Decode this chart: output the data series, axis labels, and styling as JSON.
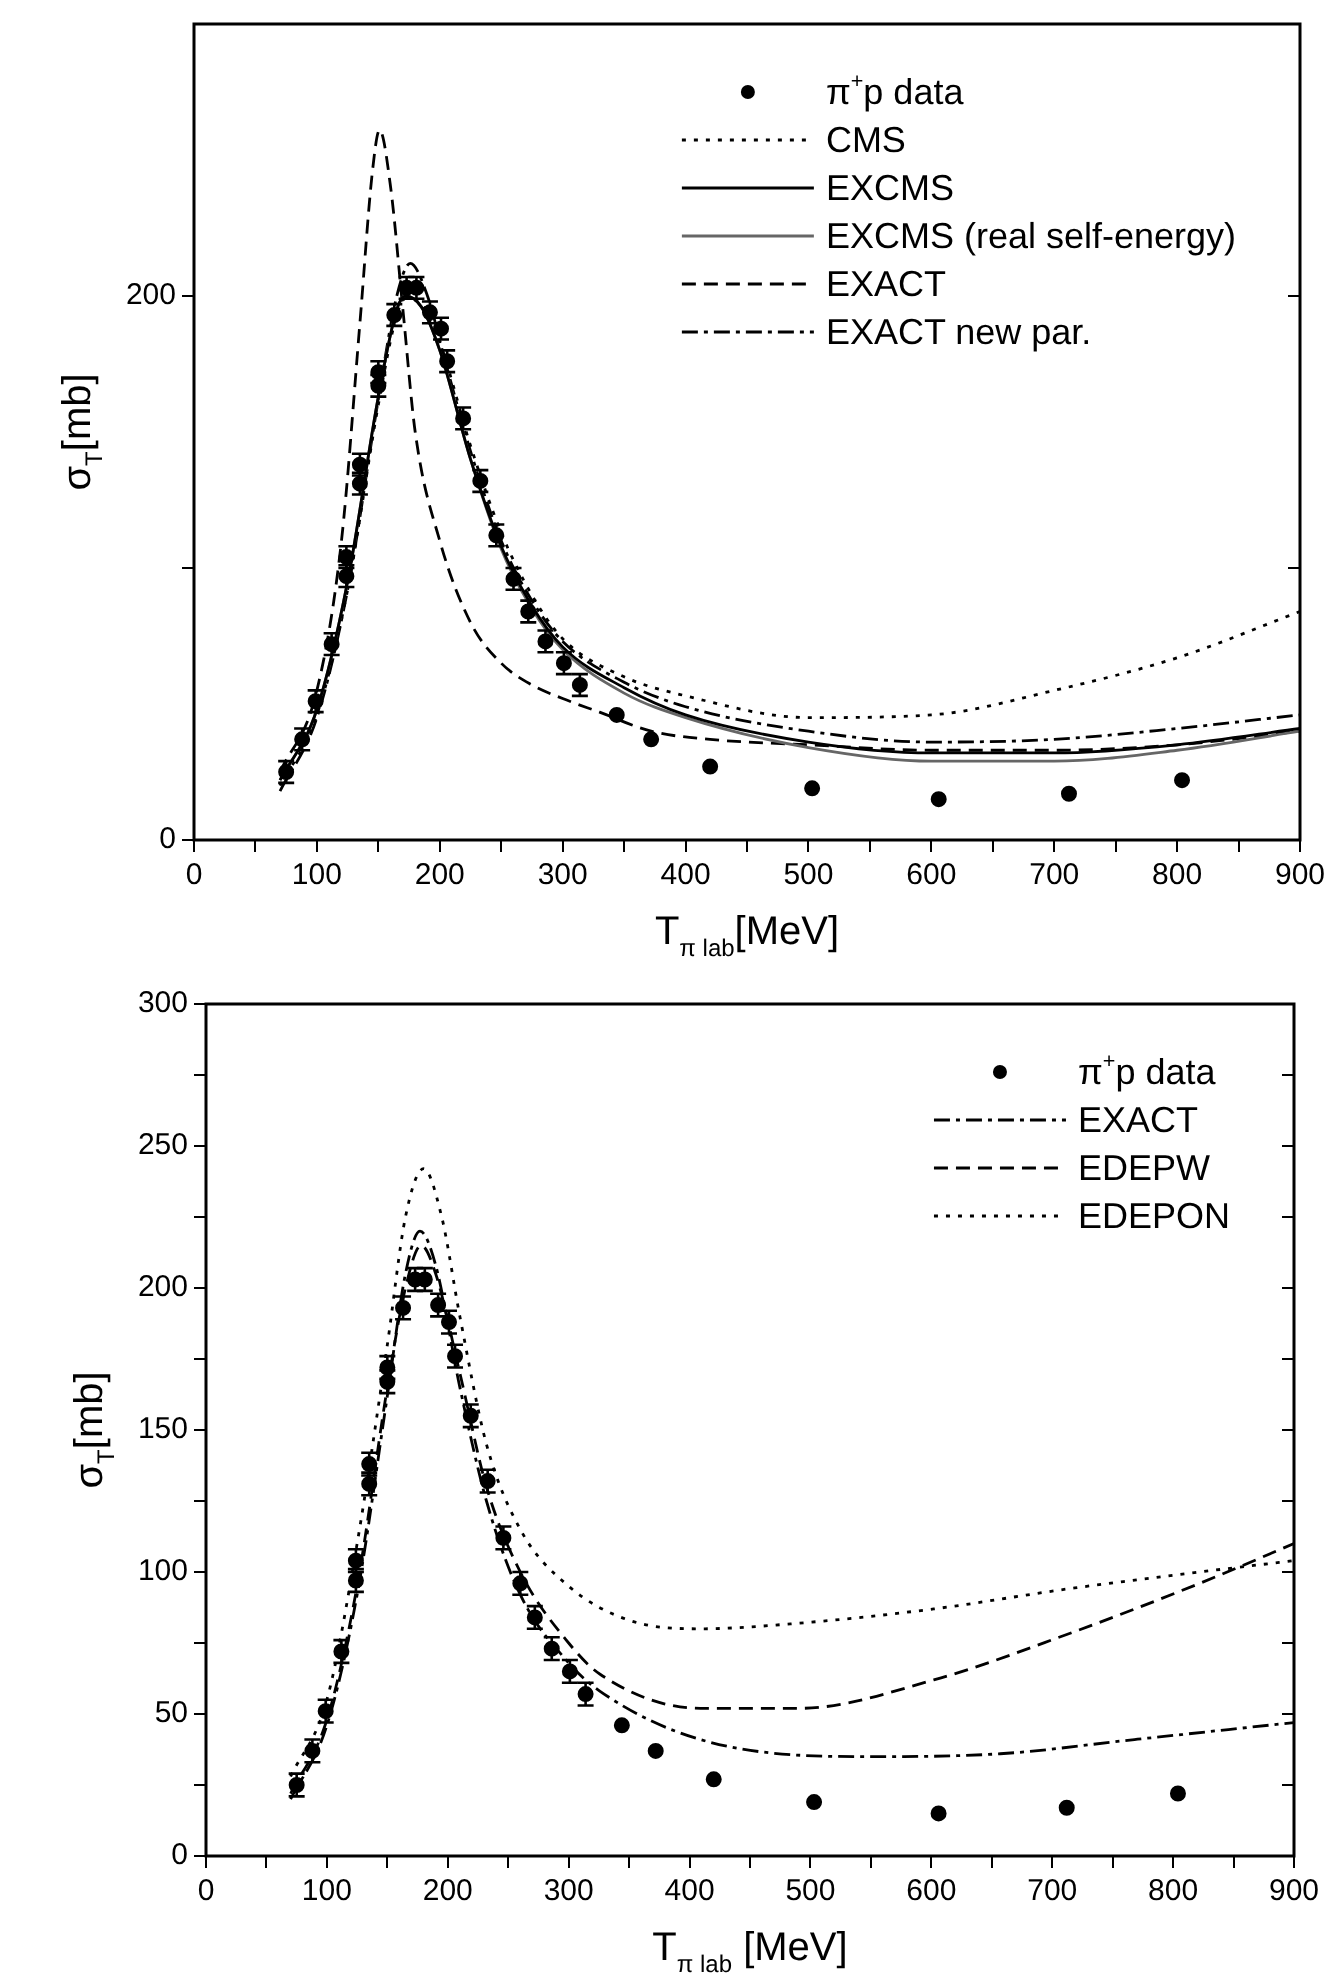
{
  "chart_data": [
    {
      "type": "line",
      "xlabel": "T$_{π lab}$[MeV]",
      "ylabel": "σ$_{T}$[mb]",
      "xlim": [
        0,
        900
      ],
      "xticks": [
        0,
        {
          "value": 50,
          "label": null
        },
        100,
        {
          "value": 150,
          "label": null
        },
        200,
        {
          "value": 250,
          "label": null
        },
        300,
        {
          "value": 350,
          "label": null
        },
        400,
        {
          "value": 450,
          "label": null
        },
        500,
        {
          "value": 550,
          "label": null
        },
        600,
        {
          "value": 650,
          "label": null
        },
        700,
        {
          "value": 750,
          "label": null
        },
        800,
        {
          "value": 850,
          "label": null
        },
        900
      ],
      "ylim": [
        0,
        300
      ],
      "yticks": [
        0,
        {
          "value": 100,
          "label": null
        },
        200
      ],
      "grid": false,
      "legend": "top right",
      "series": [
        {
          "name": "π$^{+}$p data",
          "type": "scatter",
          "marker": "circle",
          "color": "#000000",
          "x": [
            75,
            88,
            99,
            112,
            124,
            124,
            135,
            135,
            150,
            150,
            163,
            173,
            181,
            192,
            201,
            206,
            219,
            233,
            246,
            260,
            272,
            286,
            301,
            314,
            344,
            372,
            420,
            503,
            606,
            712,
            804
          ],
          "values": [
            25,
            37,
            51,
            72,
            97,
            104,
            131,
            138,
            167,
            172,
            193,
            203,
            203,
            194,
            188,
            176,
            155,
            132,
            112,
            96,
            84,
            73,
            65,
            57,
            46,
            37,
            27,
            19,
            15,
            17,
            22
          ],
          "errors": [
            4,
            4,
            4,
            4,
            4,
            4,
            4,
            4,
            4,
            4,
            4,
            4,
            4,
            4,
            4,
            4,
            4,
            4,
            4,
            4,
            4,
            4,
            4,
            4,
            null,
            null,
            null,
            null,
            null,
            null,
            null
          ]
        },
        {
          "name": "CMS",
          "type": "line",
          "line_style": "dotted",
          "color": "#000000",
          "x": [
            70,
            100,
            125,
            150,
            165,
            172,
            185,
            200,
            225,
            250,
            275,
            300,
            350,
            400,
            500,
            600,
            700,
            800,
            900
          ],
          "values": [
            20,
            46,
            92,
            160,
            193,
            199,
            197,
            183,
            145,
            113,
            90,
            74,
            60,
            53,
            45,
            46,
            55,
            67,
            84
          ]
        },
        {
          "name": "EXCMS",
          "type": "line",
          "line_style": "solid",
          "color": "#000000",
          "x": [
            70,
            100,
            125,
            150,
            165,
            172,
            185,
            200,
            225,
            250,
            275,
            300,
            350,
            400,
            500,
            600,
            700,
            800,
            900
          ],
          "values": [
            22,
            48,
            95,
            163,
            195,
            200,
            196,
            180,
            140,
            108,
            86,
            71,
            56,
            46,
            36,
            32,
            32,
            35,
            41
          ]
        },
        {
          "name": "EXCMS (real self-energy)",
          "type": "line",
          "line_style": "solid",
          "color": "#666666",
          "x": [
            70,
            100,
            125,
            150,
            165,
            172,
            185,
            200,
            225,
            250,
            275,
            300,
            350,
            400,
            500,
            600,
            700,
            800,
            900
          ],
          "values": [
            22,
            48,
            95,
            163,
            195,
            200,
            196,
            180,
            140,
            107,
            85,
            70,
            54,
            45,
            34,
            29,
            29,
            33,
            40
          ]
        },
        {
          "name": "EXACT",
          "type": "line",
          "line_style": "dashed",
          "color": "#000000",
          "x": [
            70,
            100,
            120,
            135,
            145,
            151,
            160,
            170,
            180,
            200,
            225,
            250,
            275,
            300,
            330,
            372,
            420,
            500,
            600,
            700,
            800,
            900
          ],
          "values": [
            25,
            55,
            110,
            190,
            245,
            261,
            240,
            195,
            150,
            110,
            80,
            65,
            57,
            52,
            47,
            40,
            37,
            35,
            33,
            33,
            35,
            40
          ]
        },
        {
          "name": "EXACT new par.",
          "type": "line",
          "line_style": "dashdot",
          "color": "#000000",
          "x": [
            70,
            100,
            125,
            150,
            165,
            176,
            190,
            205,
            225,
            250,
            275,
            300,
            350,
            400,
            500,
            600,
            700,
            800,
            900
          ],
          "values": [
            18,
            45,
            92,
            162,
            200,
            212,
            200,
            175,
            143,
            110,
            88,
            73,
            58,
            49,
            40,
            36,
            37,
            41,
            46
          ]
        }
      ]
    },
    {
      "type": "line",
      "xlabel": "T$_{π lab}$ [MeV]",
      "ylabel": "σ$_{T}$[mb]",
      "xlim": [
        0,
        900
      ],
      "xticks": [
        0,
        {
          "value": 50,
          "label": null
        },
        100,
        {
          "value": 150,
          "label": null
        },
        200,
        {
          "value": 250,
          "label": null
        },
        300,
        {
          "value": 350,
          "label": null
        },
        400,
        {
          "value": 450,
          "label": null
        },
        500,
        {
          "value": 550,
          "label": null
        },
        600,
        {
          "value": 650,
          "label": null
        },
        700,
        {
          "value": 750,
          "label": null
        },
        800,
        {
          "value": 850,
          "label": null
        },
        900
      ],
      "ylim": [
        0,
        300
      ],
      "yticks": [
        0,
        {
          "value": 25,
          "label": null
        },
        50,
        {
          "value": 75,
          "label": null
        },
        100,
        {
          "value": 125,
          "label": null
        },
        150,
        {
          "value": 175,
          "label": null
        },
        200,
        {
          "value": 225,
          "label": null
        },
        250,
        {
          "value": 275,
          "label": null
        },
        300
      ],
      "grid": false,
      "legend": "top right",
      "series": [
        {
          "name": "π$^{+}$p data",
          "type": "scatter",
          "marker": "circle",
          "color": "#000000",
          "x": [
            75,
            88,
            99,
            112,
            124,
            124,
            135,
            135,
            150,
            150,
            163,
            173,
            181,
            192,
            201,
            206,
            219,
            233,
            246,
            260,
            272,
            286,
            301,
            314,
            344,
            372,
            420,
            503,
            606,
            712,
            804
          ],
          "values": [
            25,
            37,
            51,
            72,
            97,
            104,
            131,
            138,
            167,
            172,
            193,
            203,
            203,
            194,
            188,
            176,
            155,
            132,
            112,
            96,
            84,
            73,
            65,
            57,
            46,
            37,
            27,
            19,
            15,
            17,
            22
          ],
          "errors": [
            4,
            4,
            4,
            4,
            4,
            4,
            4,
            4,
            4,
            4,
            4,
            4,
            4,
            4,
            4,
            4,
            4,
            4,
            4,
            4,
            4,
            4,
            4,
            4,
            null,
            null,
            null,
            null,
            null,
            null,
            null
          ]
        },
        {
          "name": "EXACT",
          "type": "line",
          "line_style": "dashdot",
          "color": "#000000",
          "x": [
            70,
            100,
            125,
            150,
            165,
            177,
            190,
            210,
            232,
            260,
            300,
            326,
            409,
            547,
            657,
            768,
            900
          ],
          "values": [
            20,
            46,
            92,
            162,
            205,
            220,
            208,
            165,
            125,
            92,
            68,
            58,
            41,
            35,
            36,
            41,
            47
          ]
        },
        {
          "name": "EDEPW",
          "type": "line",
          "line_style": "dashed",
          "color": "#000000",
          "x": [
            70,
            100,
            125,
            150,
            165,
            178,
            190,
            210,
            232,
            260,
            300,
            326,
            409,
            491,
            602,
            712,
            822,
            900
          ],
          "values": [
            22,
            48,
            95,
            165,
            200,
            215,
            205,
            170,
            130,
            100,
            75,
            64,
            52,
            52,
            62,
            78,
            96,
            110
          ]
        },
        {
          "name": "EDEPON",
          "type": "line",
          "line_style": "dotted",
          "color": "#000000",
          "x": [
            70,
            100,
            125,
            150,
            165,
            180,
            195,
            210,
            232,
            260,
            300,
            350,
            409,
            491,
            602,
            712,
            822,
            900
          ],
          "values": [
            28,
            55,
            110,
            180,
            225,
            242,
            225,
            190,
            145,
            115,
            95,
            83,
            80,
            82,
            87,
            94,
            100,
            104
          ]
        }
      ]
    }
  ]
}
